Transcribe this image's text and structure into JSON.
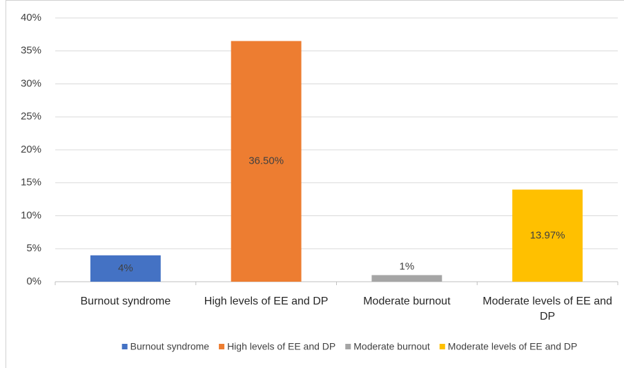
{
  "chart_data": {
    "type": "bar",
    "categories": [
      "Burnout syndrome",
      "High levels of EE and DP",
      "Moderate burnout",
      "Moderate levels of EE and DP"
    ],
    "values": [
      4,
      36.5,
      1,
      13.97
    ],
    "value_labels": [
      "4%",
      "36.50%",
      "1%",
      "13.97%"
    ],
    "colors": [
      "#4472c4",
      "#ed7d31",
      "#a5a5a5",
      "#ffc000"
    ],
    "ylim": [
      0,
      40
    ],
    "yticks": [
      {
        "value": 0,
        "label": "0%"
      },
      {
        "value": 5,
        "label": "5%"
      },
      {
        "value": 10,
        "label": "10%"
      },
      {
        "value": 15,
        "label": "15%"
      },
      {
        "value": 20,
        "label": "20%"
      },
      {
        "value": 25,
        "label": "25%"
      },
      {
        "value": 30,
        "label": "30%"
      },
      {
        "value": 35,
        "label": "35%"
      },
      {
        "value": 40,
        "label": "40%"
      }
    ],
    "grid": true,
    "legend": "bottom"
  }
}
